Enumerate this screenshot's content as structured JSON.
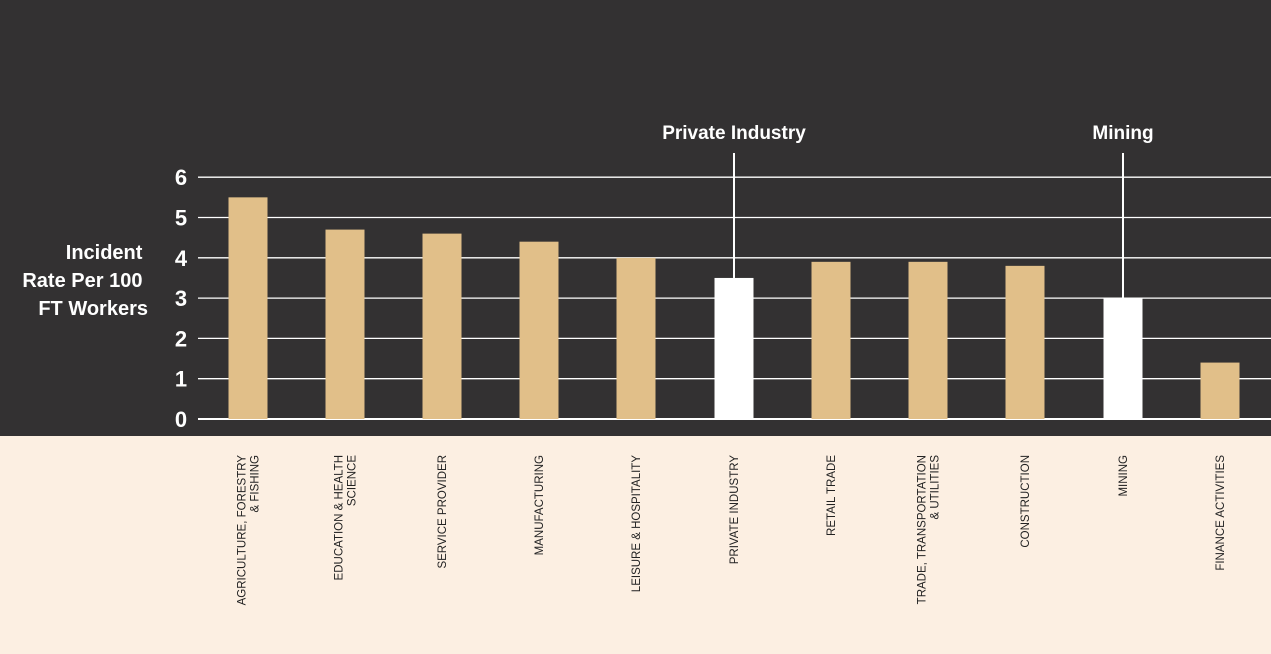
{
  "colors": {
    "background_dark": "#333132",
    "background_light": "#fcefe2",
    "bar": "#e1bf89",
    "bar_highlight": "#ffffff",
    "grid": "#ffffff"
  },
  "chart_data": {
    "type": "bar",
    "ylabel_lines": [
      "Incident",
      "Rate Per 100",
      "FT Workers"
    ],
    "ylim": [
      0,
      6
    ],
    "yticks": [
      "0",
      "1",
      "2",
      "3",
      "4",
      "5",
      "6"
    ],
    "grid": true,
    "categories": [
      [
        "AGRICULTURE, FORESTRY",
        "& FISHING"
      ],
      [
        "EDUCATION & HEALTH",
        "SCIENCE"
      ],
      [
        "SERVICE PROVIDER"
      ],
      [
        "MANUFACTURING"
      ],
      [
        "LEISURE & HOSPITALITY"
      ],
      [
        "PRIVATE INDUSTRY"
      ],
      [
        "RETAIL TRADE"
      ],
      [
        "TRADE, TRANSPORTATION",
        "& UTILITIES"
      ],
      [
        "CONSTRUCTION"
      ],
      [
        "MINING"
      ],
      [
        "FINANCE ACTIVITIES"
      ]
    ],
    "values": [
      5.5,
      4.7,
      4.6,
      4.4,
      4.0,
      3.5,
      3.9,
      3.9,
      3.8,
      3.0,
      1.4
    ],
    "highlighted": [
      false,
      false,
      false,
      false,
      false,
      true,
      false,
      false,
      false,
      true,
      false
    ],
    "annotations": [
      {
        "label": "Private Industry",
        "category_index": 5
      },
      {
        "label": "Mining",
        "category_index": 9
      }
    ]
  }
}
